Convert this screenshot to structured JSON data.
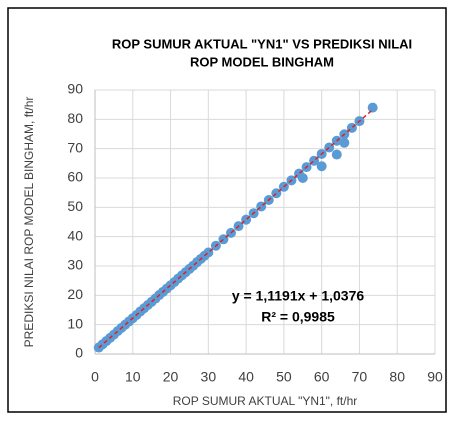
{
  "chart_data": {
    "type": "scatter",
    "title": [
      "ROP SUMUR AKTUAL \"YN1\" VS PREDIKSI NILAI",
      "ROP MODEL BINGHAM"
    ],
    "x_label": "ROP SUMUR AKTUAL \"YN1\", ft/hr",
    "y_label": "PREDIKSI NILAI ROP MODEL BINGHAM, ft/hr",
    "series": [
      {
        "color": "#5b9bd5",
        "x": [
          1,
          2,
          3,
          4,
          5,
          6,
          7,
          8,
          9,
          10,
          11,
          12,
          13,
          14,
          15,
          16,
          17,
          18,
          19,
          20,
          21,
          22,
          23,
          24,
          25,
          26,
          27,
          28,
          29,
          30,
          32,
          34,
          36,
          38,
          40,
          42,
          44,
          46,
          48,
          50,
          52,
          54,
          55,
          56,
          58,
          60,
          60,
          62,
          64,
          64,
          66,
          66,
          68,
          70,
          73.5
        ],
        "values": [
          2.2,
          3.3,
          4.4,
          5.5,
          6.6,
          7.8,
          8.9,
          10.0,
          11.1,
          12.2,
          13.3,
          14.5,
          15.6,
          16.7,
          17.8,
          18.9,
          20.1,
          21.2,
          22.3,
          23.4,
          24.5,
          25.7,
          26.8,
          27.9,
          29.0,
          30.1,
          31.3,
          32.4,
          33.5,
          34.6,
          36.9,
          39.1,
          41.3,
          43.6,
          45.8,
          48.0,
          50.3,
          52.5,
          54.8,
          57.0,
          59.2,
          61.5,
          60,
          63.7,
          65.9,
          68.2,
          64,
          70.4,
          72.7,
          68,
          74.9,
          72,
          77.1,
          79.4,
          84
        ]
      }
    ],
    "trendline": {
      "color": "#e02020",
      "slope": 1.1191,
      "intercept": 1.0376,
      "label": "y = 1,1191x + 1,0376"
    },
    "r_squared": {
      "value": 0.9985,
      "label": "R² = 0,9985"
    },
    "xlim": [
      0,
      90
    ],
    "ylim": [
      0,
      90
    ],
    "xticks": [
      0,
      10,
      20,
      30,
      40,
      50,
      60,
      70,
      80,
      90
    ],
    "yticks": [
      0,
      10,
      20,
      30,
      40,
      50,
      60,
      70,
      80,
      90
    ],
    "grid": true
  }
}
